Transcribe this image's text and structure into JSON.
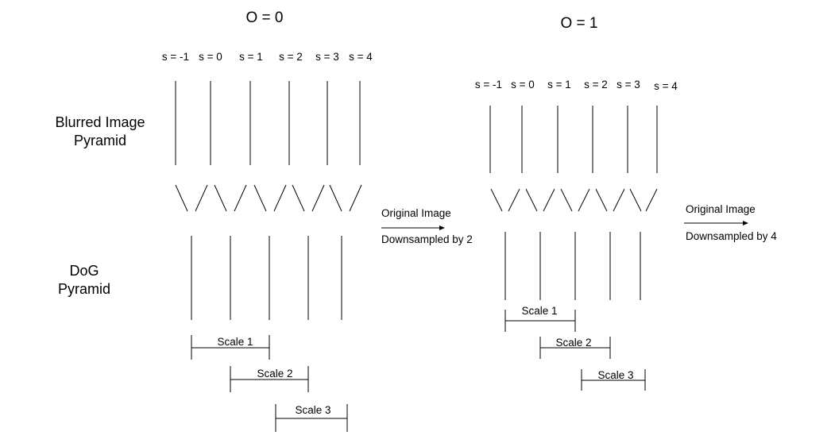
{
  "diagram": {
    "row_labels": {
      "blurred_line1": "Blurred Image",
      "blurred_line2": "Pyramid",
      "dog_line1": "DoG",
      "dog_line2": "Pyramid"
    },
    "octaves": [
      {
        "title": "O = 0",
        "scales": [
          "s = -1",
          "s = 0",
          "s = 1",
          "s = 2",
          "s = 3",
          "s = 4"
        ],
        "dog_scales": [
          "Scale 1",
          "Scale 2",
          "Scale 3"
        ],
        "note_line1": "Original Image",
        "note_line2": "Downsampled by 2"
      },
      {
        "title": "O = 1",
        "scales": [
          "s = -1",
          "s = 0",
          "s = 1",
          "s = 2",
          "s = 3",
          "s = 4"
        ],
        "dog_scales": [
          "Scale 1",
          "Scale 2",
          "Scale 3"
        ],
        "note_line1": "Original Image",
        "note_line2": "Downsampled by 4"
      }
    ]
  }
}
